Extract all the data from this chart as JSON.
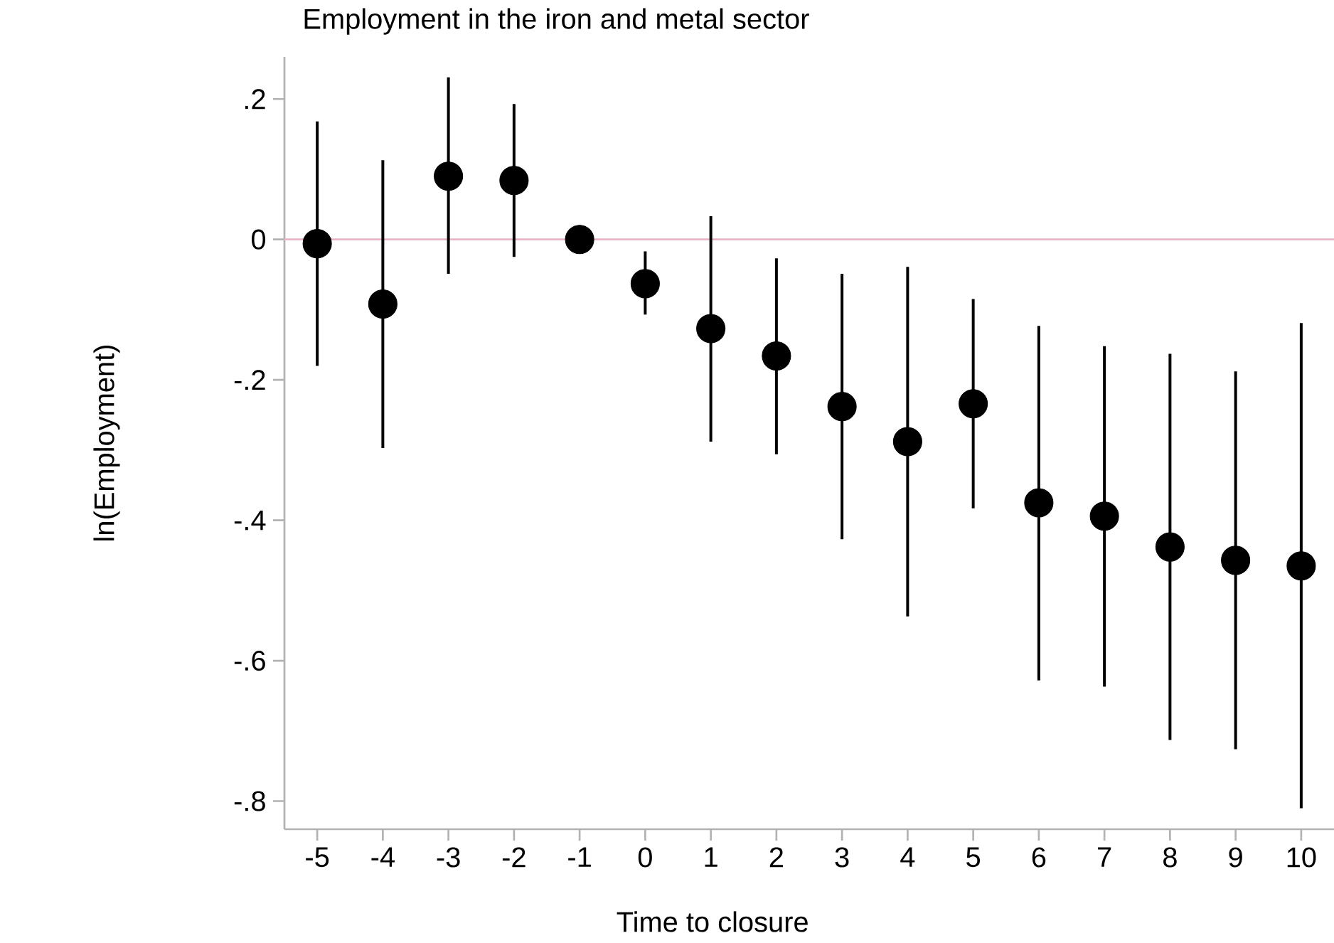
{
  "chart_data": {
    "type": "scatter",
    "title": "Employment in the iron and metal sector",
    "xlabel": "Time to closure",
    "ylabel": "ln(Employment)",
    "x": [
      -5,
      -4,
      -3,
      -2,
      -1,
      0,
      1,
      2,
      3,
      4,
      5,
      6,
      7,
      8,
      9,
      10
    ],
    "values": [
      -0.006,
      -0.092,
      0.09,
      0.084,
      0,
      -0.063,
      -0.127,
      -0.166,
      -0.238,
      -0.288,
      -0.234,
      -0.375,
      -0.394,
      -0.438,
      -0.457,
      -0.465
    ],
    "errors": [
      [
        -0.18,
        0.168
      ],
      [
        -0.297,
        0.113
      ],
      [
        -0.049,
        0.231
      ],
      [
        -0.025,
        0.193
      ],
      null,
      [
        -0.107,
        -0.017
      ],
      [
        -0.288,
        0.033
      ],
      [
        -0.306,
        -0.027
      ],
      [
        -0.427,
        -0.049
      ],
      [
        -0.537,
        -0.039
      ],
      [
        -0.383,
        -0.085
      ],
      [
        -0.628,
        -0.123
      ],
      [
        -0.637,
        -0.152
      ],
      [
        -0.713,
        -0.163
      ],
      [
        -0.726,
        -0.188
      ],
      [
        -0.81,
        -0.119
      ]
    ],
    "color": "#000000",
    "marker": "circle",
    "xlim": [
      -5.5,
      10.5
    ],
    "ylim": [
      -0.84,
      0.26
    ],
    "xticks": [
      -5,
      -4,
      -3,
      -2,
      -1,
      0,
      1,
      2,
      3,
      4,
      5,
      6,
      7,
      8,
      9,
      10
    ],
    "yticks": [
      {
        "value": 0.2,
        "label": ".2"
      },
      0,
      {
        "value": -0.2,
        "label": "-.2"
      },
      {
        "value": -0.4,
        "label": "-.4"
      },
      {
        "value": -0.6,
        "label": "-.6"
      },
      {
        "value": -0.8,
        "label": "-.8"
      }
    ],
    "ref_lines": [
      {
        "axis": "y",
        "value": 0,
        "color": "#e8b4c4"
      }
    ],
    "grid": false
  }
}
